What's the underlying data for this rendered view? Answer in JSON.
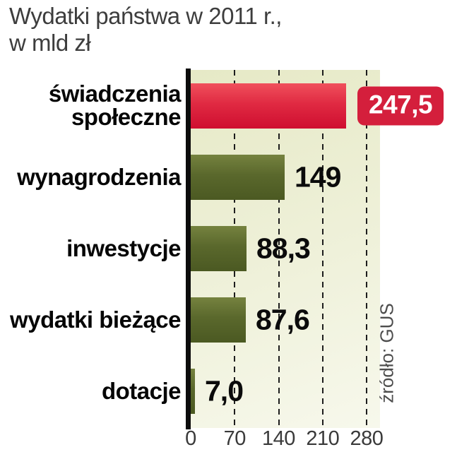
{
  "title": {
    "line1": "Wydatki państwa w 2011 r.,",
    "line2": "w mld zł"
  },
  "source": "źródło: GUS",
  "chart_data": {
    "type": "bar",
    "orientation": "horizontal",
    "title": "Wydatki państwa w 2011 r., w mld zł",
    "unit": "mld zł",
    "categories": [
      "świadczenia społeczne",
      "wynagrodzenia",
      "inwestycje",
      "wydatki bieżące",
      "dotacje"
    ],
    "values": [
      247.5,
      149,
      88.3,
      87.6,
      7.0
    ],
    "value_labels": [
      "247,5",
      "149",
      "88,3",
      "87,6",
      "7,0"
    ],
    "xlim": [
      0,
      280
    ],
    "xticks": [
      0,
      70,
      140,
      210,
      280
    ],
    "grid": "dashed-vertical",
    "legend": "none",
    "highlight_index": 0,
    "colors": {
      "bar": "#5a682c",
      "highlight_bar": "#e02a42",
      "badge_bg": "#d41f3c",
      "badge_text": "#ffffff",
      "plot_bg": "#edf0d6",
      "axis": "#0c0c0c",
      "title_text": "#3d3d3d",
      "label_text": "#060606"
    },
    "source": "źródło: GUS"
  }
}
